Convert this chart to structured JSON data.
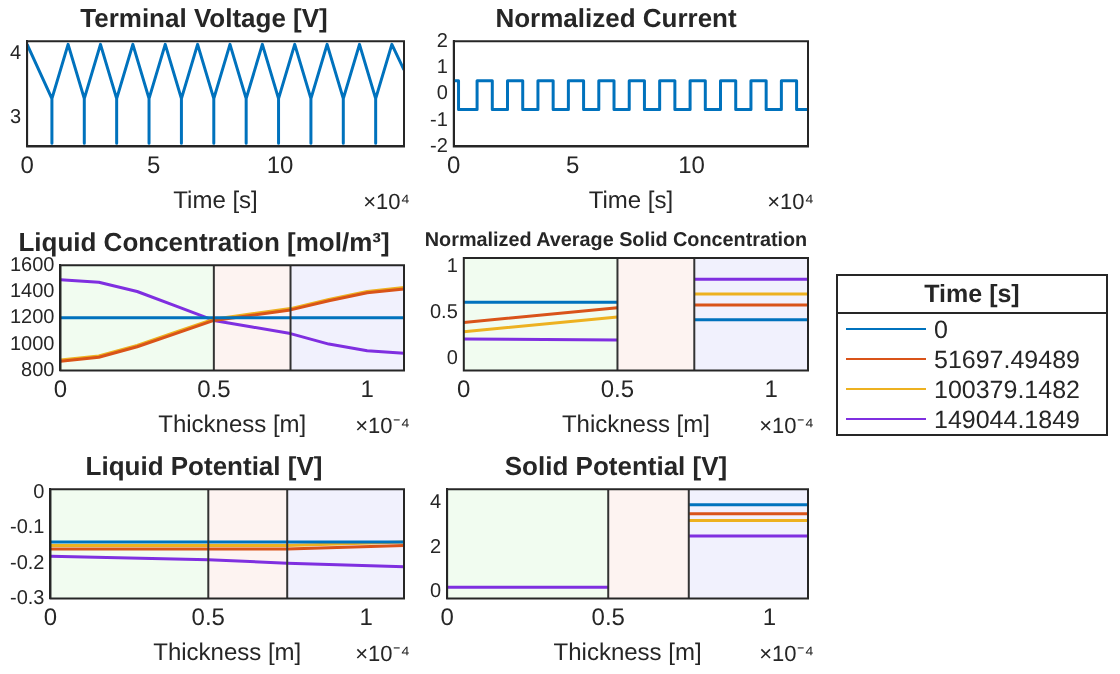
{
  "chart_data": [
    {
      "type": "line",
      "title": "Terminal Voltage [V]",
      "xlabel": "Time [s]",
      "annotations": [
        "×10⁴"
      ],
      "xlim": [
        0,
        14.9
      ],
      "xticks": [
        0,
        5,
        10
      ],
      "ylim": [
        2.55,
        4.2
      ],
      "yticks": [
        3,
        4
      ],
      "series": [
        {
          "color": "#0072bd",
          "x": [
            0,
            0.98,
            0.98,
            0.98,
            1.62,
            2.26,
            2.26,
            2.26,
            2.9,
            3.54,
            3.54,
            3.54,
            4.18,
            4.82,
            4.82,
            4.82,
            5.46,
            6.1,
            6.1,
            6.1,
            6.74,
            7.38,
            7.38,
            7.38,
            8.02,
            8.66,
            8.66,
            8.66,
            9.3,
            9.94,
            9.94,
            9.94,
            10.58,
            11.22,
            11.22,
            11.22,
            11.86,
            12.5,
            12.5,
            12.5,
            13.14,
            13.78,
            13.78,
            13.78,
            14.42,
            14.9
          ],
          "values": [
            4.15,
            3.3,
            2.6,
            3.3,
            4.15,
            3.3,
            2.6,
            3.3,
            4.15,
            3.3,
            2.6,
            3.3,
            4.15,
            3.3,
            2.6,
            3.3,
            4.15,
            3.3,
            2.6,
            3.3,
            4.15,
            3.3,
            2.6,
            3.3,
            4.15,
            3.3,
            2.6,
            3.3,
            4.15,
            3.3,
            2.6,
            3.3,
            4.15,
            3.3,
            2.6,
            3.3,
            4.15,
            3.3,
            2.6,
            3.3,
            4.15,
            3.3,
            2.6,
            3.3,
            4.15,
            3.75
          ]
        }
      ]
    },
    {
      "type": "line",
      "title": "Normalized Current",
      "xlabel": "Time [s]",
      "annotations": [
        "×10⁴"
      ],
      "xlim": [
        0,
        14.9
      ],
      "xticks": [
        0,
        5,
        10
      ],
      "ylim": [
        -2,
        2
      ],
      "yticks": [
        -2,
        -1,
        0,
        1,
        2
      ],
      "series": [
        {
          "color": "#0072bd",
          "x": [
            0,
            0.2,
            0.2,
            0.98,
            0.98,
            1.62,
            1.62,
            2.26,
            2.26,
            2.9,
            2.9,
            3.54,
            3.54,
            4.18,
            4.18,
            4.82,
            4.82,
            5.46,
            5.46,
            6.1,
            6.1,
            6.74,
            6.74,
            7.38,
            7.38,
            8.02,
            8.02,
            8.66,
            8.66,
            9.3,
            9.3,
            9.94,
            9.94,
            10.58,
            10.58,
            11.22,
            11.22,
            11.86,
            11.86,
            12.5,
            12.5,
            13.14,
            13.14,
            13.78,
            13.78,
            14.42,
            14.42,
            14.9
          ],
          "values": [
            0.5,
            0.5,
            -0.6,
            -0.6,
            0.5,
            0.5,
            -0.6,
            -0.6,
            0.5,
            0.5,
            -0.6,
            -0.6,
            0.5,
            0.5,
            -0.6,
            -0.6,
            0.5,
            0.5,
            -0.6,
            -0.6,
            0.5,
            0.5,
            -0.6,
            -0.6,
            0.5,
            0.5,
            -0.6,
            -0.6,
            0.5,
            0.5,
            -0.6,
            -0.6,
            0.5,
            0.5,
            -0.6,
            -0.6,
            0.5,
            0.5,
            -0.6,
            -0.6,
            0.5,
            0.5,
            -0.6,
            -0.6,
            0.5,
            0.5,
            -0.6,
            -0.6
          ]
        }
      ]
    },
    {
      "type": "line",
      "title": "Liquid Concentration [mol/m³]",
      "xlabel": "Thickness [m]",
      "annotations": [
        "×10⁻⁴"
      ],
      "xlim": [
        0,
        1.12
      ],
      "xticks": [
        0,
        0.5,
        1
      ],
      "ylim": [
        800,
        1600
      ],
      "yticks": [
        800,
        1000,
        1200,
        1400,
        1600
      ],
      "bands": [
        {
          "axis": "x",
          "from": 0,
          "to": 0.5,
          "color": "#f1fcf0"
        },
        {
          "axis": "x",
          "from": 0.5,
          "to": 0.75,
          "color": "#fdf3f1"
        },
        {
          "axis": "x",
          "from": 0.75,
          "to": 1.12,
          "color": "#f1f1fd"
        }
      ],
      "ref_lines": [
        {
          "axis": "x",
          "value": 0.5,
          "color": "#333333"
        },
        {
          "axis": "x",
          "value": 0.75,
          "color": "#333333"
        }
      ],
      "series": [
        {
          "color": "#0072bd",
          "x": [
            0,
            0.125,
            0.25,
            0.375,
            0.5,
            0.625,
            0.75,
            0.875,
            1,
            1.12
          ],
          "values": [
            1200,
            1200,
            1200,
            1200,
            1200,
            1200,
            1200,
            1200,
            1200,
            1200
          ]
        },
        {
          "color": "#d95319",
          "x": [
            0,
            0.125,
            0.25,
            0.375,
            0.5,
            0.625,
            0.75,
            0.875,
            1,
            1.12
          ],
          "values": [
            870,
            900,
            980,
            1080,
            1180,
            1220,
            1260,
            1330,
            1390,
            1420
          ]
        },
        {
          "color": "#edb120",
          "x": [
            0,
            0.125,
            0.25,
            0.375,
            0.5,
            0.625,
            0.75,
            0.875,
            1,
            1.12
          ],
          "values": [
            880,
            910,
            990,
            1090,
            1190,
            1230,
            1270,
            1340,
            1400,
            1430
          ]
        },
        {
          "color": "#7f2fe0",
          "x": [
            0,
            0.125,
            0.25,
            0.375,
            0.5,
            0.625,
            0.75,
            0.875,
            1,
            1.12
          ],
          "values": [
            1490,
            1470,
            1400,
            1290,
            1180,
            1130,
            1080,
            1000,
            950,
            930
          ]
        }
      ]
    },
    {
      "type": "line",
      "title": "Normalized Average Solid Concentration",
      "xlabel": "Thickness [m]",
      "annotations": [
        "×10⁻⁴"
      ],
      "legend": "right",
      "legend_title": "Time [s]",
      "xlim": [
        0,
        1.12
      ],
      "xticks": [
        0,
        0.5,
        1
      ],
      "ylim": [
        -0.13,
        1.09
      ],
      "yticks": [
        0,
        0.5,
        1
      ],
      "bands": [
        {
          "axis": "x",
          "from": 0,
          "to": 0.5,
          "color": "#f1fcf0"
        },
        {
          "axis": "x",
          "from": 0.5,
          "to": 0.75,
          "color": "#fdf3f1"
        },
        {
          "axis": "x",
          "from": 0.75,
          "to": 1.12,
          "color": "#f1f1fd"
        }
      ],
      "ref_lines": [
        {
          "axis": "x",
          "value": 0.5,
          "color": "#333333"
        },
        {
          "axis": "x",
          "value": 0.75,
          "color": "#333333"
        }
      ],
      "series": [
        {
          "name": "0",
          "color": "#0072bd",
          "x": [
            0,
            0.5,
            0.625,
            0.75,
            1.12
          ],
          "values": [
            0.61,
            0.61,
            null,
            0.42,
            0.42
          ]
        },
        {
          "name": "51697.49489",
          "color": "#d95319",
          "x": [
            0,
            0.5,
            0.625,
            0.75,
            1.12
          ],
          "values": [
            0.39,
            0.55,
            null,
            0.58,
            0.58
          ]
        },
        {
          "name": "100379.1482",
          "color": "#edb120",
          "x": [
            0,
            0.5,
            0.625,
            0.75,
            1.12
          ],
          "values": [
            0.29,
            0.45,
            null,
            0.7,
            0.7
          ]
        },
        {
          "name": "149044.1849",
          "color": "#7f2fe0",
          "x": [
            0,
            0.5,
            0.625,
            0.75,
            1.12
          ],
          "values": [
            0.21,
            0.2,
            null,
            0.86,
            0.86
          ]
        }
      ]
    },
    {
      "type": "line",
      "title": "Liquid Potential [V]",
      "xlabel": "Thickness [m]",
      "annotations": [
        "×10⁻⁴"
      ],
      "xlim": [
        0,
        1.12
      ],
      "xticks": [
        0,
        0.5,
        1
      ],
      "ylim": [
        -0.3,
        0.01
      ],
      "yticks": [
        -0.3,
        -0.2,
        -0.1,
        0
      ],
      "bands": [
        {
          "axis": "x",
          "from": 0,
          "to": 0.5,
          "color": "#f1fcf0"
        },
        {
          "axis": "x",
          "from": 0.5,
          "to": 0.75,
          "color": "#fdf3f1"
        },
        {
          "axis": "x",
          "from": 0.75,
          "to": 1.12,
          "color": "#f1f1fd"
        }
      ],
      "ref_lines": [
        {
          "axis": "x",
          "value": 0.5,
          "color": "#333333"
        },
        {
          "axis": "x",
          "value": 0.75,
          "color": "#333333"
        }
      ],
      "series": [
        {
          "color": "#0072bd",
          "x": [
            0,
            0.5,
            0.75,
            1.12
          ],
          "values": [
            -0.14,
            -0.14,
            -0.14,
            -0.14
          ]
        },
        {
          "color": "#d95319",
          "x": [
            0,
            0.5,
            0.75,
            1.12
          ],
          "values": [
            -0.16,
            -0.16,
            -0.16,
            -0.15
          ]
        },
        {
          "color": "#edb120",
          "x": [
            0,
            0.5,
            0.75,
            1.12
          ],
          "values": [
            -0.15,
            -0.15,
            -0.15,
            -0.14
          ]
        },
        {
          "color": "#7f2fe0",
          "x": [
            0,
            0.5,
            0.75,
            1.12
          ],
          "values": [
            -0.18,
            -0.19,
            -0.2,
            -0.21
          ]
        }
      ]
    },
    {
      "type": "line",
      "title": "Solid Potential [V]",
      "xlabel": "Thickness [m]",
      "annotations": [
        "×10⁻⁴"
      ],
      "xlim": [
        0,
        1.12
      ],
      "xticks": [
        0,
        0.5,
        1
      ],
      "ylim": [
        -0.3,
        4.6
      ],
      "yticks": [
        0,
        2,
        4
      ],
      "bands": [
        {
          "axis": "x",
          "from": 0,
          "to": 0.5,
          "color": "#f1fcf0"
        },
        {
          "axis": "x",
          "from": 0.5,
          "to": 0.75,
          "color": "#fdf3f1"
        },
        {
          "axis": "x",
          "from": 0.75,
          "to": 1.12,
          "color": "#f1f1fd"
        }
      ],
      "ref_lines": [
        {
          "axis": "x",
          "value": 0.5,
          "color": "#333333"
        },
        {
          "axis": "x",
          "value": 0.75,
          "color": "#333333"
        }
      ],
      "series": [
        {
          "color": "#0072bd",
          "x": [
            0.75,
            1.12
          ],
          "values": [
            3.9,
            3.9
          ]
        },
        {
          "color": "#d95319",
          "x": [
            0.75,
            1.12
          ],
          "values": [
            3.5,
            3.5
          ]
        },
        {
          "color": "#edb120",
          "x": [
            0.75,
            1.12
          ],
          "values": [
            3.2,
            3.2
          ]
        },
        {
          "color": "#7f2fe0",
          "x": [
            0,
            0.5,
            0.625,
            0.75,
            1.12
          ],
          "values": [
            0.2,
            0.2,
            null,
            2.5,
            2.5
          ]
        }
      ]
    }
  ]
}
